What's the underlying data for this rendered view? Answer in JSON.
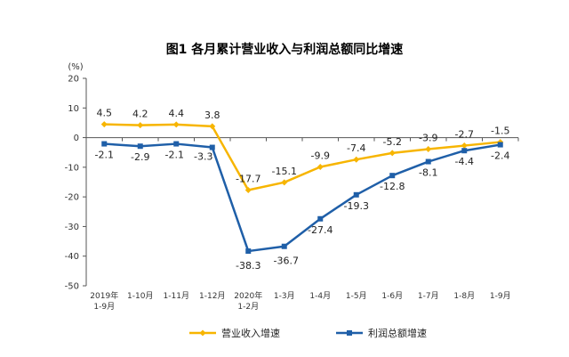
{
  "chart_data": {
    "type": "line",
    "title": "图1  各月累计营业收入与利润总额同比增速",
    "ylabel": "(%)",
    "xlabel": "",
    "ylim": [
      -50,
      20
    ],
    "yticks": [
      20,
      10,
      0,
      -10,
      -20,
      -30,
      -40,
      -50
    ],
    "grid": false,
    "legend_position": "bottom",
    "categories": [
      [
        "2019年",
        "1-9月"
      ],
      [
        "1-10月"
      ],
      [
        "1-11月"
      ],
      [
        "1-12月"
      ],
      [
        "2020年",
        "1-2月"
      ],
      [
        "1-3月"
      ],
      [
        "1-4月"
      ],
      [
        "1-5月"
      ],
      [
        "1-6月"
      ],
      [
        "1-7月"
      ],
      [
        "1-8月"
      ],
      [
        "1-9月"
      ]
    ],
    "series": [
      {
        "name": "营业收入增速",
        "color": "#F7B500",
        "values": [
          4.5,
          4.2,
          4.4,
          3.8,
          -17.7,
          -15.1,
          -9.9,
          -7.4,
          -5.2,
          -3.9,
          -2.7,
          -1.5
        ],
        "labels": [
          "4.5",
          "4.2",
          "4.4",
          "3.8",
          "-17.7",
          "-15.1",
          "-9.9",
          "-7.4",
          "-5.2",
          "-3.9",
          "-2.7",
          "-1.5"
        ]
      },
      {
        "name": "利润总额增速",
        "color": "#1F5FA8",
        "values": [
          -2.1,
          -2.9,
          -2.1,
          -3.3,
          -38.3,
          -36.7,
          -27.4,
          -19.3,
          -12.8,
          -8.1,
          -4.4,
          -2.4
        ],
        "labels": [
          "-2.1",
          "-2.9",
          "-2.1",
          "-3.3",
          "-38.3",
          "-36.7",
          "-27.4",
          "-19.3",
          "-12.8",
          "-8.1",
          "-4.4",
          "-2.4"
        ]
      }
    ]
  }
}
